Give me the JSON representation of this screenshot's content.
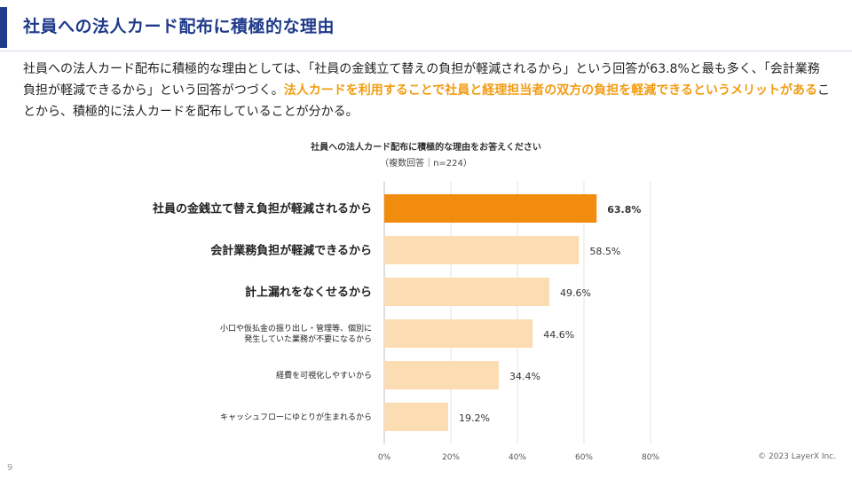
{
  "slide": {
    "title": "社員への法人カード配布に積極的な理由",
    "body_part1": "社員への法人カード配布に積極的な理由としては、「社員の金銭立て替えの負担が軽減されるから」という回答が63.8%と最も多く、「会計業務負担が軽減できるから」という回答がつづく。",
    "body_highlight": "法人カードを利用することで社員と経理担当者の双方の負担を軽減できるというメリットがある",
    "body_part2": "ことから、積極的に法人カードを配布していることが分かる。",
    "copyright": "© 2023 LayerX Inc.",
    "page_number": "9"
  },
  "chart_data": {
    "type": "bar",
    "orientation": "horizontal",
    "title": "社員への法人カード配布に積極的な理由をお答えください",
    "subtitle": "（複数回答｜n=224）",
    "categories": [
      "社員の金銭立て替え負担が軽減されるから",
      "会計業務負担が軽減できるから",
      "計上漏れをなくせるから",
      "小口や仮払金の振り出し・管理等、個別に発生していた業務が不要になるから",
      "経費を可視化しやすいから",
      "キャッシュフローにゆとりが生まれるから"
    ],
    "category_lines": [
      [
        "社員の金銭立て替え負担が軽減されるから"
      ],
      [
        "会計業務負担が軽減できるから"
      ],
      [
        "計上漏れをなくせるから"
      ],
      [
        "小口や仮払金の振り出し・管理等、個別に",
        "発生していた業務が不要になるから"
      ],
      [
        "経費を可視化しやすいから"
      ],
      [
        "キャッシュフローにゆとりが生まれるから"
      ]
    ],
    "values": [
      63.8,
      58.5,
      49.6,
      44.6,
      34.4,
      19.2
    ],
    "value_labels": [
      "63.8%",
      "58.5%",
      "49.6%",
      "44.6%",
      "34.4%",
      "19.2%"
    ],
    "xlim": [
      0,
      80
    ],
    "xticks": [
      "0%",
      "20%",
      "40%",
      "60%",
      "80%"
    ],
    "grid": true,
    "colors": {
      "highlight": "#f28c0f",
      "normal": "#fcdcb3",
      "grid": "#e3e3e3"
    },
    "highlight_index": 0,
    "emphasized_indices": [
      0,
      1,
      2
    ]
  }
}
